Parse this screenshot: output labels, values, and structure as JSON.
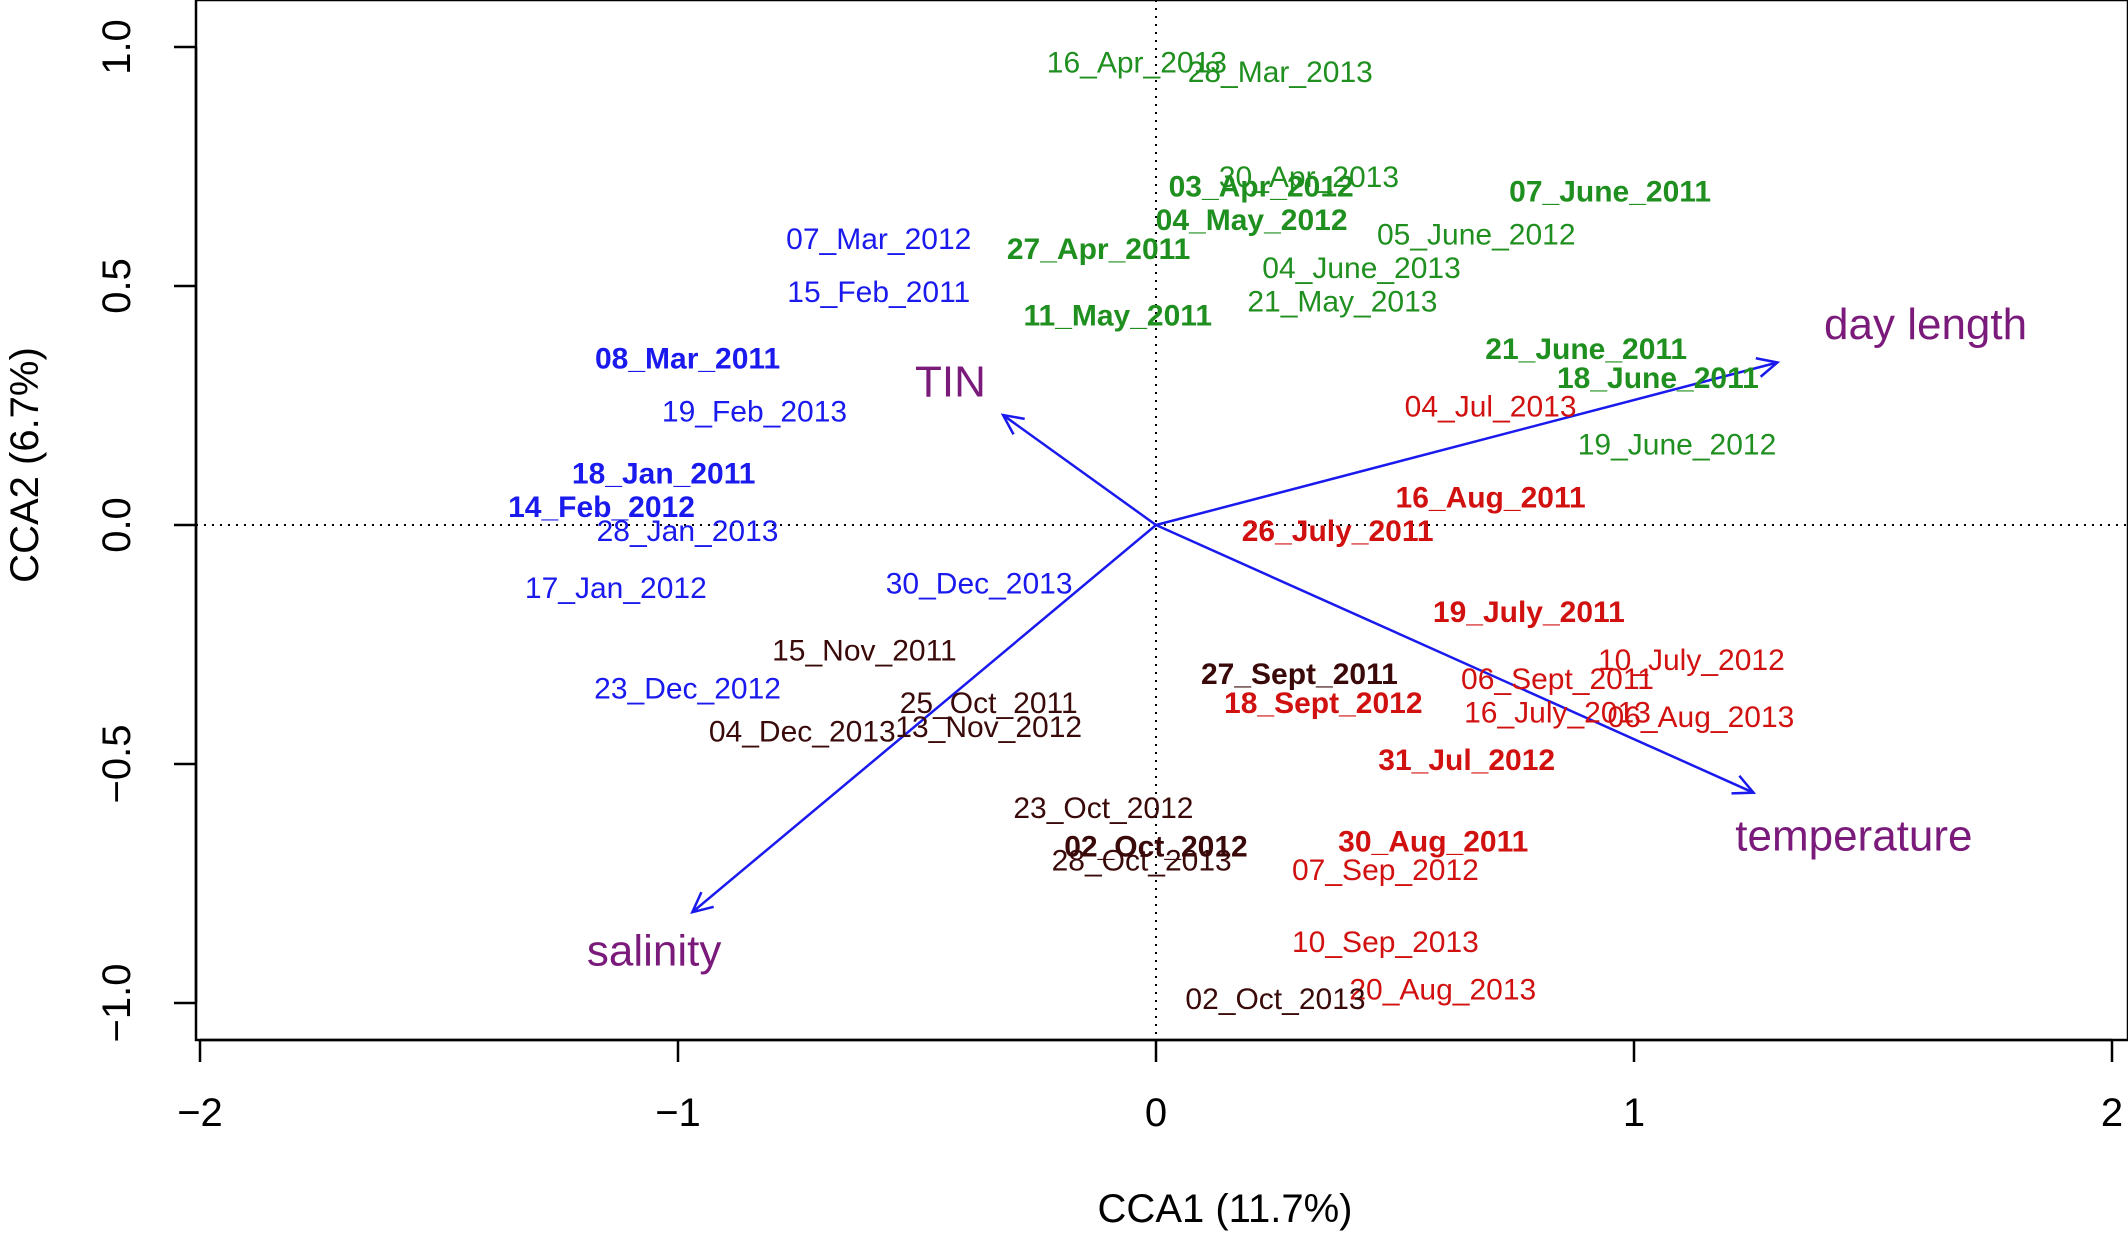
{
  "chart_data": {
    "type": "scatter",
    "xlabel": "CCA1 (11.7%)",
    "ylabel": "CCA2 (6.7%)",
    "xlim": [
      -2,
      2
    ],
    "ylim": [
      -1.0,
      1.0
    ],
    "x_ticks": [
      "−2",
      "−1",
      "0",
      "1",
      "2"
    ],
    "x_tick_values": [
      -2,
      -1,
      0,
      1,
      2
    ],
    "y_ticks": [
      "−1.0",
      "−0.5",
      "0.0",
      "0.5",
      "1.0"
    ],
    "y_tick_values": [
      -1.0,
      -0.5,
      0.0,
      0.5,
      1.0
    ],
    "reference_lines": {
      "x": 0,
      "y": 0,
      "style": "dotted"
    },
    "colors": {
      "winter": "#1a1aee",
      "spring": "#1f8f1f",
      "summer": "#d11010",
      "autumn": "#3a0a0a",
      "vector": "#1a1aee",
      "vector_label": "#7a1a7a"
    },
    "points": [
      {
        "label": "16_Apr_2013",
        "x": -0.04,
        "y": 0.97,
        "group": "spring",
        "bold": false
      },
      {
        "label": "28_Mar_2013",
        "x": 0.26,
        "y": 0.95,
        "group": "spring",
        "bold": false
      },
      {
        "label": "30_Apr_2013",
        "x": 0.32,
        "y": 0.73,
        "group": "spring",
        "bold": false
      },
      {
        "label": "03_Apr_2012",
        "x": 0.22,
        "y": 0.71,
        "group": "spring",
        "bold": true
      },
      {
        "label": "07_June_2011",
        "x": 0.95,
        "y": 0.7,
        "group": "spring",
        "bold": true
      },
      {
        "label": "04_May_2012",
        "x": 0.2,
        "y": 0.64,
        "group": "spring",
        "bold": true
      },
      {
        "label": "05_June_2012",
        "x": 0.67,
        "y": 0.61,
        "group": "spring",
        "bold": false
      },
      {
        "label": "27_Apr_2011",
        "x": -0.12,
        "y": 0.58,
        "group": "spring",
        "bold": true
      },
      {
        "label": "04_June_2013",
        "x": 0.43,
        "y": 0.54,
        "group": "spring",
        "bold": false
      },
      {
        "label": "21_May_2013",
        "x": 0.39,
        "y": 0.47,
        "group": "spring",
        "bold": false
      },
      {
        "label": "11_May_2011",
        "x": -0.08,
        "y": 0.44,
        "group": "spring",
        "bold": true
      },
      {
        "label": "21_June_2011",
        "x": 0.9,
        "y": 0.37,
        "group": "spring",
        "bold": true
      },
      {
        "label": "18_June_2011",
        "x": 1.05,
        "y": 0.31,
        "group": "spring",
        "bold": true
      },
      {
        "label": "19_June_2012",
        "x": 1.09,
        "y": 0.17,
        "group": "spring",
        "bold": false
      },
      {
        "label": "04_Jul_2013",
        "x": 0.7,
        "y": 0.25,
        "group": "summer",
        "bold": false
      },
      {
        "label": "16_Aug_2011",
        "x": 0.7,
        "y": 0.06,
        "group": "summer",
        "bold": true
      },
      {
        "label": "26_July_2011",
        "x": 0.38,
        "y": -0.01,
        "group": "summer",
        "bold": true
      },
      {
        "label": "19_July_2011",
        "x": 0.78,
        "y": -0.18,
        "group": "summer",
        "bold": true
      },
      {
        "label": "10_July_2012",
        "x": 1.12,
        "y": -0.28,
        "group": "summer",
        "bold": false
      },
      {
        "label": "06_Sept_2011",
        "x": 0.84,
        "y": -0.32,
        "group": "summer",
        "bold": false
      },
      {
        "label": "18_Sept_2012",
        "x": 0.35,
        "y": -0.37,
        "group": "summer",
        "bold": true
      },
      {
        "label": "16_July_2013",
        "x": 0.84,
        "y": -0.39,
        "group": "summer",
        "bold": false
      },
      {
        "label": "06_Aug_2013",
        "x": 1.14,
        "y": -0.4,
        "group": "summer",
        "bold": false
      },
      {
        "label": "31_Jul_2012",
        "x": 0.65,
        "y": -0.49,
        "group": "summer",
        "bold": true
      },
      {
        "label": "30_Aug_2011",
        "x": 0.58,
        "y": -0.66,
        "group": "summer",
        "bold": true
      },
      {
        "label": "07_Sep_2012",
        "x": 0.48,
        "y": -0.72,
        "group": "summer",
        "bold": false
      },
      {
        "label": "10_Sep_2013",
        "x": 0.48,
        "y": -0.87,
        "group": "summer",
        "bold": false
      },
      {
        "label": "20_Aug_2013",
        "x": 0.6,
        "y": -0.97,
        "group": "summer",
        "bold": false
      },
      {
        "label": "27_Sept_2011",
        "x": 0.3,
        "y": -0.31,
        "group": "autumn",
        "bold": true
      },
      {
        "label": "15_Nov_2011",
        "x": -0.61,
        "y": -0.26,
        "group": "autumn",
        "bold": false
      },
      {
        "label": "25_Oct_2011",
        "x": -0.35,
        "y": -0.37,
        "group": "autumn",
        "bold": false
      },
      {
        "label": "13_Nov_2012",
        "x": -0.35,
        "y": -0.42,
        "group": "autumn",
        "bold": false
      },
      {
        "label": "04_Dec_2013",
        "x": -0.74,
        "y": -0.43,
        "group": "autumn",
        "bold": false
      },
      {
        "label": "23_Oct_2012",
        "x": -0.11,
        "y": -0.59,
        "group": "autumn",
        "bold": false
      },
      {
        "label": "02_Oct_2012",
        "x": 0.0,
        "y": -0.67,
        "group": "autumn",
        "bold": true
      },
      {
        "label": "28_Oct_2013",
        "x": -0.03,
        "y": -0.7,
        "group": "autumn",
        "bold": false
      },
      {
        "label": "02_Oct_2013",
        "x": 0.25,
        "y": -0.99,
        "group": "autumn",
        "bold": false
      },
      {
        "label": "07_Mar_2012",
        "x": -0.58,
        "y": 0.6,
        "group": "winter",
        "bold": false
      },
      {
        "label": "15_Feb_2011",
        "x": -0.58,
        "y": 0.49,
        "group": "winter",
        "bold": false
      },
      {
        "label": "08_Mar_2011",
        "x": -0.98,
        "y": 0.35,
        "group": "winter",
        "bold": true
      },
      {
        "label": "19_Feb_2013",
        "x": -0.84,
        "y": 0.24,
        "group": "winter",
        "bold": false
      },
      {
        "label": "18_Jan_2011",
        "x": -1.03,
        "y": 0.11,
        "group": "winter",
        "bold": true
      },
      {
        "label": "14_Feb_2012",
        "x": -1.16,
        "y": 0.04,
        "group": "winter",
        "bold": true
      },
      {
        "label": "28_Jan_2013",
        "x": -0.98,
        "y": -0.01,
        "group": "winter",
        "bold": false
      },
      {
        "label": "17_Jan_2012",
        "x": -1.13,
        "y": -0.13,
        "group": "winter",
        "bold": false
      },
      {
        "label": "30_Dec_2013",
        "x": -0.37,
        "y": -0.12,
        "group": "winter",
        "bold": false
      },
      {
        "label": "23_Dec_2012",
        "x": -0.98,
        "y": -0.34,
        "group": "winter",
        "bold": false
      }
    ],
    "vectors": [
      {
        "name": "day length",
        "x": 1.3,
        "y": 0.34,
        "label_x": 1.61,
        "label_y": 0.42
      },
      {
        "name": "TIN",
        "x": -0.32,
        "y": 0.23,
        "label_x": -0.43,
        "label_y": 0.3
      },
      {
        "name": "temperature",
        "x": 1.25,
        "y": -0.56,
        "label_x": 1.46,
        "label_y": -0.65
      },
      {
        "name": "salinity",
        "x": -0.97,
        "y": -0.81,
        "label_x": -1.05,
        "label_y": -0.89
      }
    ]
  }
}
